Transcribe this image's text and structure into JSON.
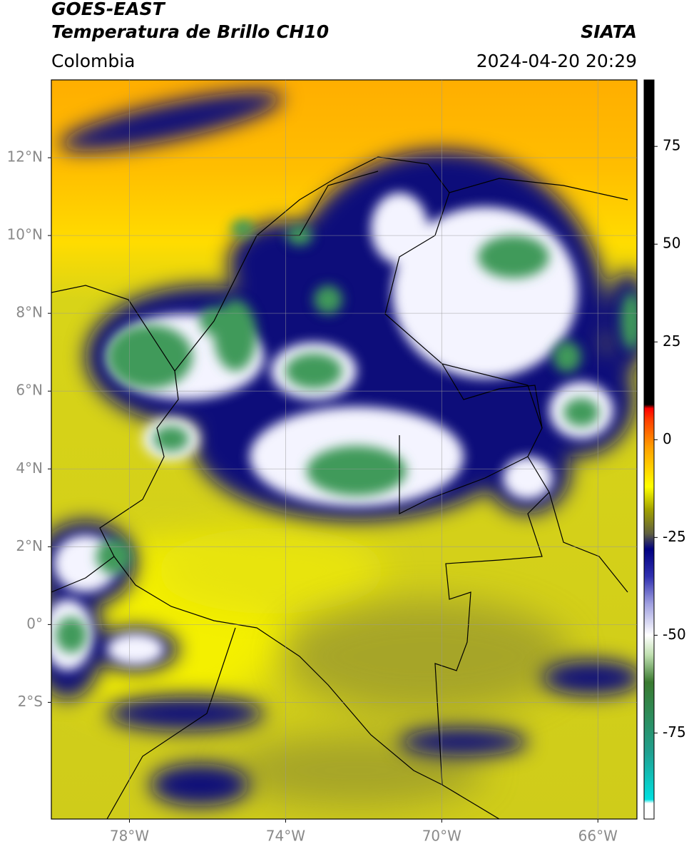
{
  "header": {
    "line1": "GOES-EAST",
    "line2": "Temperatura de Brillo CH10",
    "source": "SIATA",
    "region": "Colombia",
    "datetime": "2024-04-20 20:29"
  },
  "map": {
    "xlim": [
      -80,
      -65
    ],
    "ylim": [
      -5,
      14
    ],
    "grid": true,
    "xticks": [
      {
        "value": -78,
        "label": "78°W"
      },
      {
        "value": -74,
        "label": "74°W"
      },
      {
        "value": -70,
        "label": "70°W"
      },
      {
        "value": -66,
        "label": "66°W"
      }
    ],
    "yticks": [
      {
        "value": 12,
        "label": "12°N"
      },
      {
        "value": 10,
        "label": "10°N"
      },
      {
        "value": 8,
        "label": "8°N"
      },
      {
        "value": 6,
        "label": "6°N"
      },
      {
        "value": 4,
        "label": "4°N"
      },
      {
        "value": 2,
        "label": "2°N"
      },
      {
        "value": 0,
        "label": "0°"
      },
      {
        "value": -2,
        "label": "2°S"
      }
    ]
  },
  "colorbar": {
    "lim": [
      -97,
      92
    ],
    "ticks": [
      75,
      50,
      25,
      0,
      -25,
      -50,
      -75
    ],
    "stops": [
      {
        "value": -97,
        "color": "#ffffff"
      },
      {
        "value": -93,
        "color": "#ffffff"
      },
      {
        "value": -92,
        "color": "#00e0e0"
      },
      {
        "value": -80,
        "color": "#20a090"
      },
      {
        "value": -70,
        "color": "#2e8b57"
      },
      {
        "value": -62,
        "color": "#3a7a30"
      },
      {
        "value": -55,
        "color": "#c0e0b0"
      },
      {
        "value": -50,
        "color": "#ffffff"
      },
      {
        "value": -42,
        "color": "#a0a0e0"
      },
      {
        "value": -35,
        "color": "#3030b0"
      },
      {
        "value": -28,
        "color": "#000080"
      },
      {
        "value": -24,
        "color": "#606040"
      },
      {
        "value": -18,
        "color": "#a0a000"
      },
      {
        "value": -12,
        "color": "#ffff00"
      },
      {
        "value": -2,
        "color": "#ffa000"
      },
      {
        "value": 5,
        "color": "#ff4000"
      },
      {
        "value": 8,
        "color": "#ff0000"
      },
      {
        "value": 9,
        "color": "#000000"
      },
      {
        "value": 92,
        "color": "#000000"
      }
    ]
  }
}
